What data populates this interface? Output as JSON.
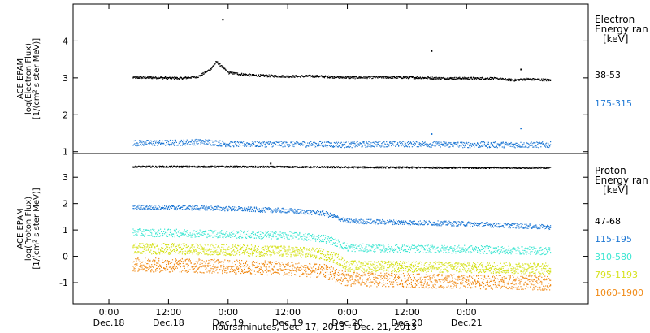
{
  "chart_data": [
    {
      "type": "scatter",
      "panel": "electron",
      "ylabel": [
        "ACE EPAM",
        "log(Electron Flux)",
        "[1/(cm² s ster MeV)]"
      ],
      "ylim": [
        0.95,
        5.0
      ],
      "yticks": [
        1,
        2,
        3,
        4
      ],
      "legend": {
        "title": [
          "Electron",
          "Energy ran",
          "[keV]"
        ],
        "placement": "right"
      },
      "series": [
        {
          "name": "38-53",
          "color": "#000000",
          "points": [
            [
              0.2,
              3.02
            ],
            [
              0.4,
              3.02
            ],
            [
              0.6,
              3.0
            ],
            [
              0.75,
              3.05
            ],
            [
              0.85,
              3.25
            ],
            [
              0.9,
              3.45
            ],
            [
              0.95,
              3.3
            ],
            [
              1.0,
              3.15
            ],
            [
              1.2,
              3.08
            ],
            [
              1.5,
              3.05
            ],
            [
              1.7,
              3.06
            ],
            [
              2.0,
              3.02
            ],
            [
              2.3,
              3.03
            ],
            [
              2.6,
              3.02
            ],
            [
              2.8,
              3.0
            ],
            [
              3.0,
              3.0
            ],
            [
              3.2,
              3.0
            ],
            [
              3.4,
              2.95
            ],
            [
              3.5,
              2.98
            ],
            [
              3.7,
              2.95
            ]
          ],
          "outliers": [
            [
              0.95,
              4.6
            ],
            [
              2.7,
              3.75
            ],
            [
              3.45,
              3.25
            ]
          ]
        },
        {
          "name": "175-315",
          "color": "#1f78d4",
          "points": [
            [
              0.2,
              1.25
            ],
            [
              0.5,
              1.25
            ],
            [
              0.8,
              1.28
            ],
            [
              1.0,
              1.22
            ],
            [
              1.3,
              1.22
            ],
            [
              1.6,
              1.22
            ],
            [
              2.0,
              1.2
            ],
            [
              2.3,
              1.22
            ],
            [
              2.6,
              1.22
            ],
            [
              3.0,
              1.2
            ],
            [
              3.3,
              1.2
            ],
            [
              3.7,
              1.2
            ]
          ],
          "outliers": [
            [
              2.7,
              1.5
            ],
            [
              3.45,
              1.65
            ]
          ]
        }
      ]
    },
    {
      "type": "scatter",
      "panel": "proton",
      "ylabel": [
        "ACE EPAM",
        "log(Proton Flux)",
        "[1/(cm² s ster MeV)]"
      ],
      "ylim": [
        -1.8,
        3.9
      ],
      "yticks": [
        -1,
        0,
        1,
        2,
        3
      ],
      "legend": {
        "title": [
          "Proton",
          "Energy ran",
          "[keV]"
        ],
        "placement": "right"
      },
      "series": [
        {
          "name": "47-68",
          "color": "#000000",
          "points": [
            [
              0.2,
              3.42
            ],
            [
              1.0,
              3.42
            ],
            [
              2.0,
              3.4
            ],
            [
              3.0,
              3.38
            ],
            [
              3.7,
              3.38
            ]
          ],
          "outliers": [
            [
              1.35,
              3.55
            ]
          ]
        },
        {
          "name": "115-195",
          "color": "#1f78d4",
          "points": [
            [
              0.2,
              1.88
            ],
            [
              0.8,
              1.85
            ],
            [
              1.5,
              1.75
            ],
            [
              1.8,
              1.65
            ],
            [
              1.9,
              1.5
            ],
            [
              2.0,
              1.35
            ],
            [
              2.5,
              1.3
            ],
            [
              3.0,
              1.25
            ],
            [
              3.7,
              1.12
            ]
          ],
          "outliers": []
        },
        {
          "name": "310-580",
          "color": "#3ee6d2",
          "points": [
            [
              0.2,
              0.92
            ],
            [
              0.8,
              0.88
            ],
            [
              1.5,
              0.8
            ],
            [
              1.8,
              0.7
            ],
            [
              1.9,
              0.55
            ],
            [
              2.0,
              0.35
            ],
            [
              2.5,
              0.3
            ],
            [
              3.0,
              0.28
            ],
            [
              3.7,
              0.22
            ]
          ],
          "outliers": []
        },
        {
          "name": "795-1193",
          "color": "#d6e21e",
          "points": [
            [
              0.2,
              0.32
            ],
            [
              0.8,
              0.28
            ],
            [
              1.5,
              0.2
            ],
            [
              1.8,
              0.1
            ],
            [
              1.9,
              -0.05
            ],
            [
              2.0,
              -0.35
            ],
            [
              2.5,
              -0.38
            ],
            [
              3.0,
              -0.4
            ],
            [
              3.7,
              -0.45
            ]
          ],
          "outliers": []
        },
        {
          "name": "1060-1900",
          "color": "#f08a16",
          "points": [
            [
              0.2,
              -0.3
            ],
            [
              0.8,
              -0.35
            ],
            [
              1.5,
              -0.45
            ],
            [
              1.8,
              -0.55
            ],
            [
              1.9,
              -0.7
            ],
            [
              2.0,
              -0.85
            ],
            [
              2.5,
              -0.9
            ],
            [
              3.0,
              -0.95
            ],
            [
              3.7,
              -1.0
            ]
          ],
          "outliers": []
        }
      ]
    }
  ],
  "x_axis": {
    "range_days": [
      -0.3,
      4.02
    ],
    "ticks": [
      {
        "x": 0.0,
        "time": "0:00",
        "date": "Dec.18"
      },
      {
        "x": 0.5,
        "time": "12:00",
        "date": "Dec.18"
      },
      {
        "x": 1.0,
        "time": "0:00",
        "date": "Dec.19"
      },
      {
        "x": 1.5,
        "time": "12:00",
        "date": "Dec.19"
      },
      {
        "x": 2.0,
        "time": "0:00",
        "date": "Dec.20"
      },
      {
        "x": 2.5,
        "time": "12:00",
        "date": "Dec.20"
      },
      {
        "x": 3.0,
        "time": "0:00",
        "date": "Dec.21"
      }
    ],
    "label": "hours:minutes, Dec. 17, 2013 - Dec. 21, 2013"
  }
}
